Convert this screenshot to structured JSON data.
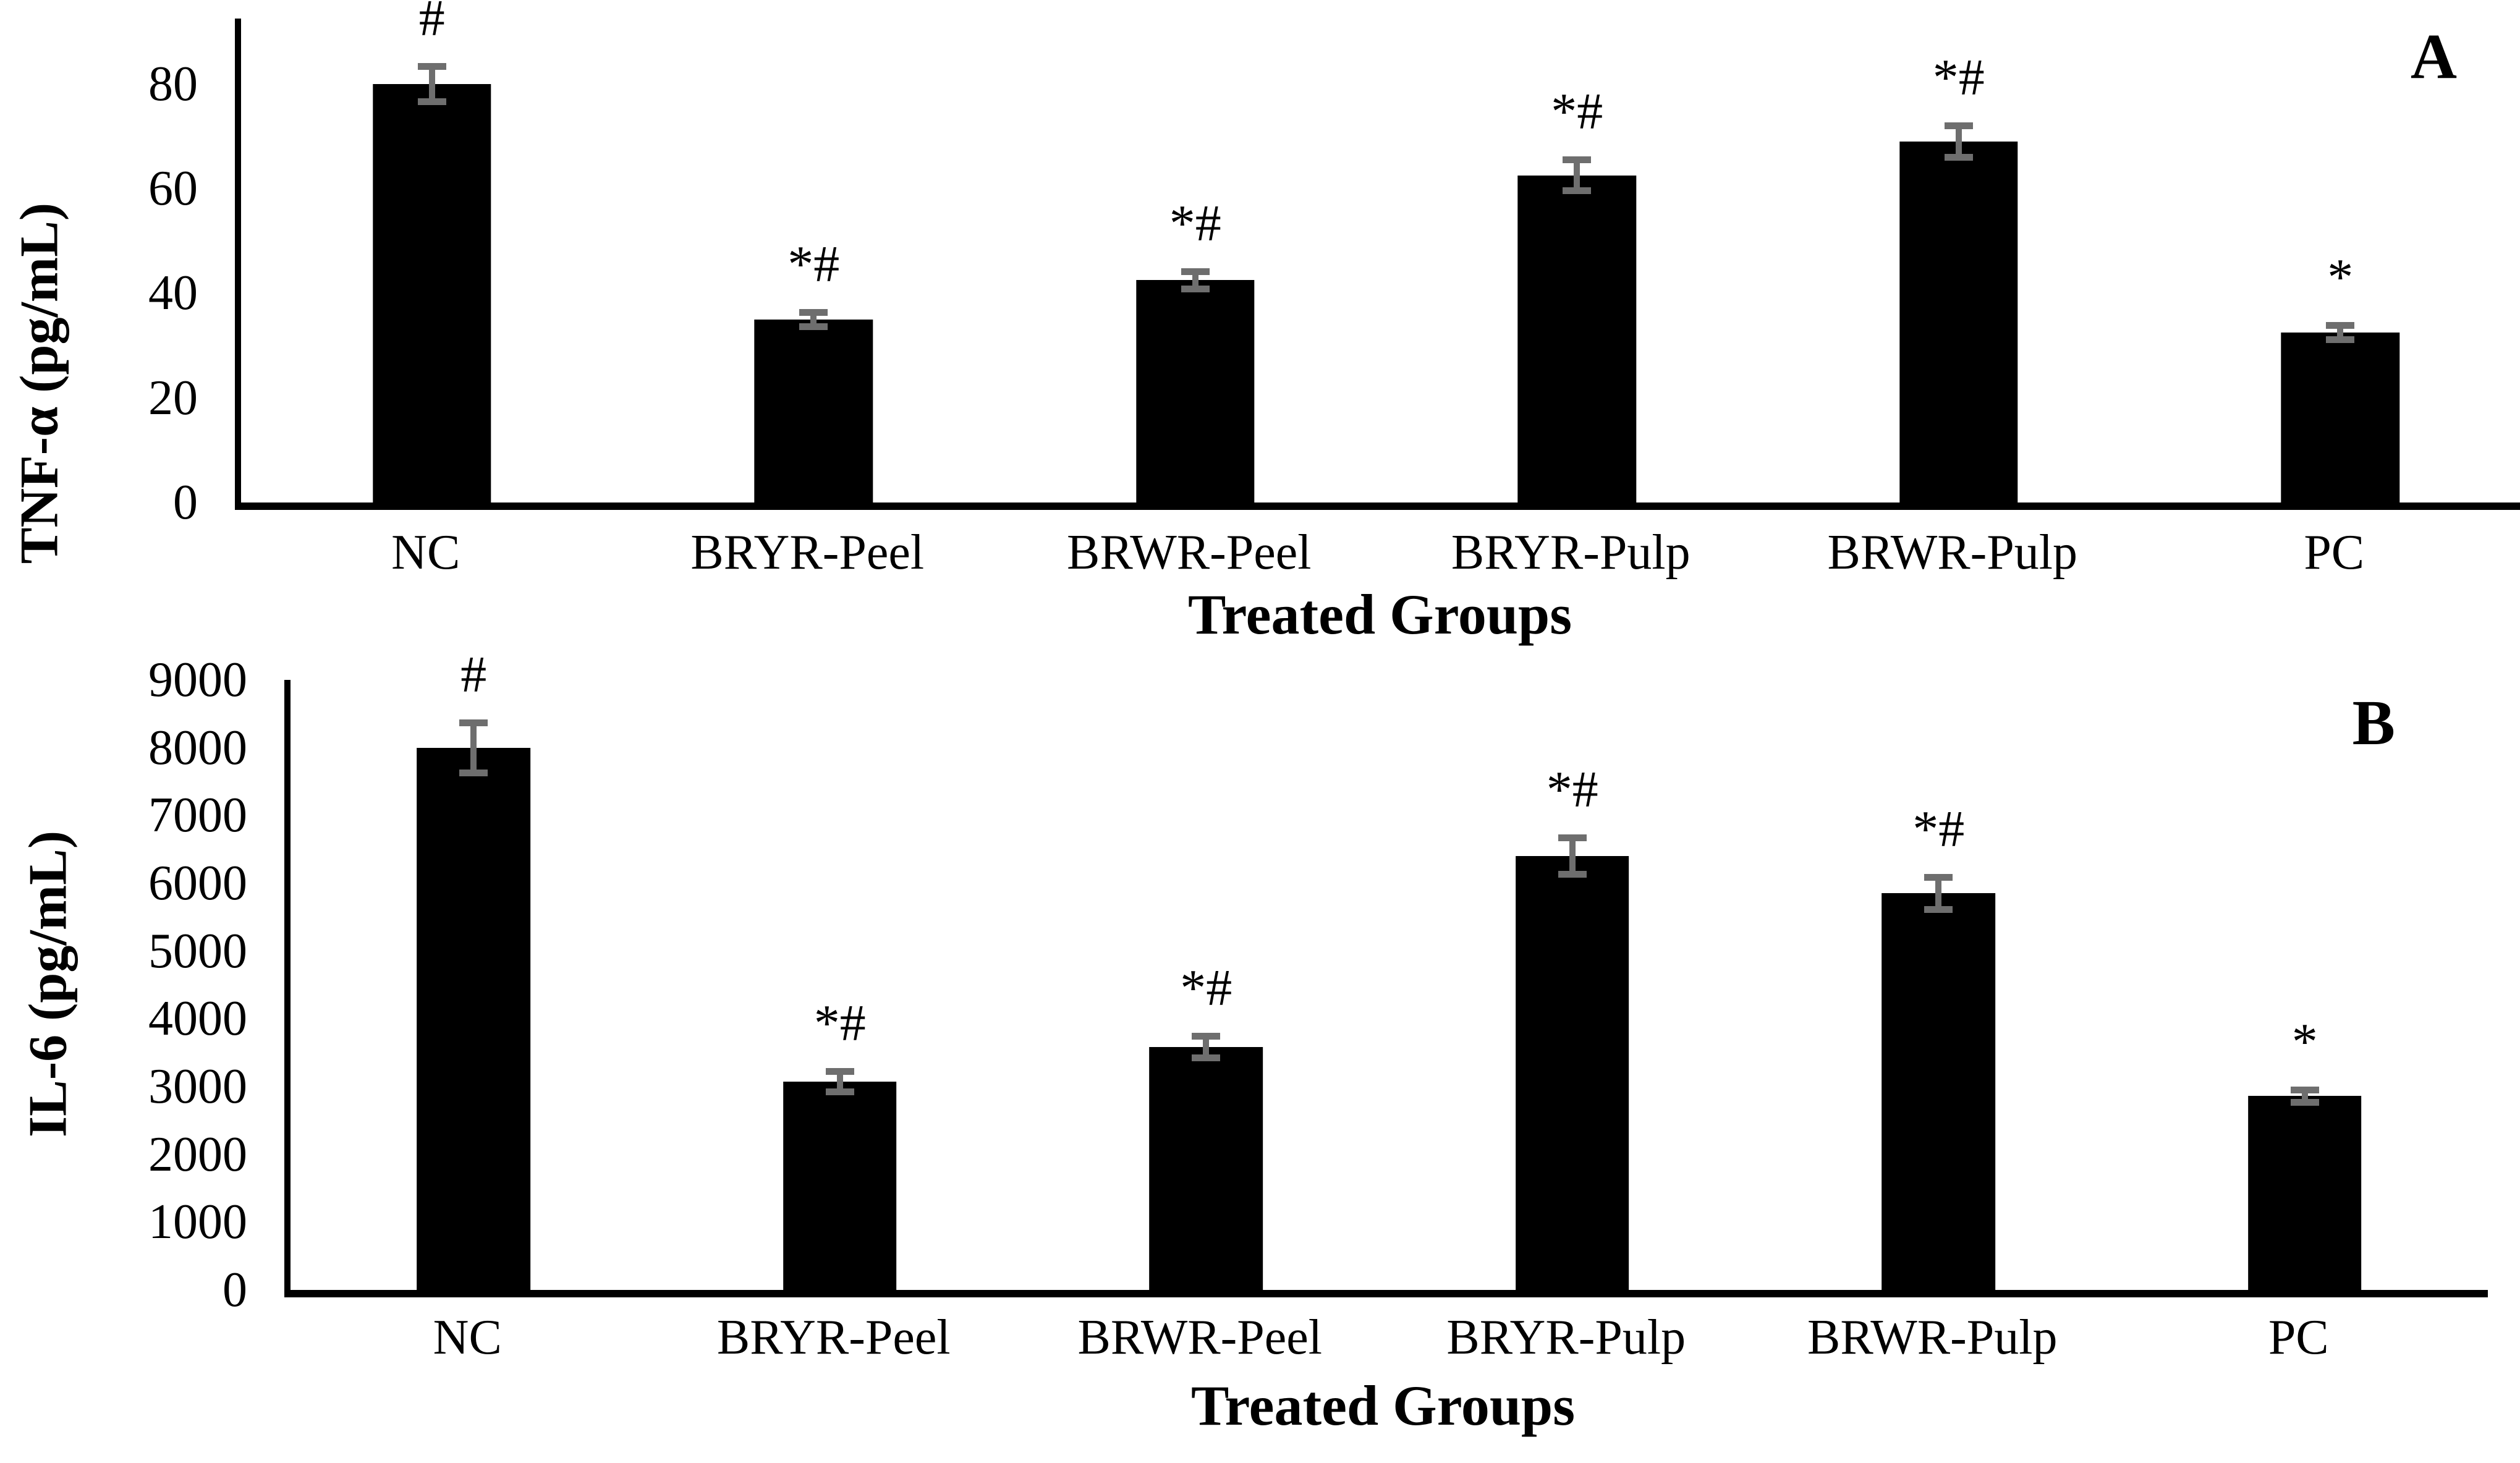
{
  "colors": {
    "bar": "#000000",
    "error_bar": "#6e6e6e",
    "axis": "#000000",
    "background": "#ffffff",
    "text": "#000000"
  },
  "chart_data": [
    {
      "type": "bar",
      "panel_label": "A",
      "ylabel": "TNF-α (pg/mL)",
      "xlabel": "Treated Groups",
      "categories": [
        "NC",
        "BRYR-Peel",
        "BRWR-Peel",
        "BRYR-Pulp",
        "BRWR-Pulp",
        "PC"
      ],
      "values": [
        80,
        35,
        42.5,
        62.5,
        69,
        32.5
      ],
      "errors": [
        4,
        2,
        2.3,
        3.6,
        3.7,
        2
      ],
      "annotations": [
        "#",
        "*#",
        "*#",
        "*#",
        "*#",
        "*"
      ],
      "yticks": [
        0,
        20,
        40,
        60,
        80
      ],
      "ylim": [
        0,
        92.5
      ],
      "grid": false,
      "legend": null,
      "bar_color": "#000000",
      "error_bar_color": "#6e6e6e"
    },
    {
      "type": "bar",
      "panel_label": "B",
      "ylabel": "IL-6 (pg/mL)",
      "xlabel": "Treated Groups",
      "categories": [
        "NC",
        "BRYR-Peel",
        "BRWR-Peel",
        "BRYR-Pulp",
        "BRWR-Pulp",
        "PC"
      ],
      "values": [
        8000,
        3070,
        3580,
        6400,
        5850,
        2860
      ],
      "errors": [
        420,
        200,
        210,
        320,
        290,
        140
      ],
      "annotations": [
        "#",
        "*#",
        "*#",
        "*#",
        "*#",
        "*"
      ],
      "yticks": [
        0,
        1000,
        2000,
        3000,
        4000,
        5000,
        6000,
        7000,
        8000,
        9000
      ],
      "ylim": [
        0,
        9000
      ],
      "grid": false,
      "legend": null,
      "bar_color": "#000000",
      "error_bar_color": "#6e6e6e"
    }
  ]
}
